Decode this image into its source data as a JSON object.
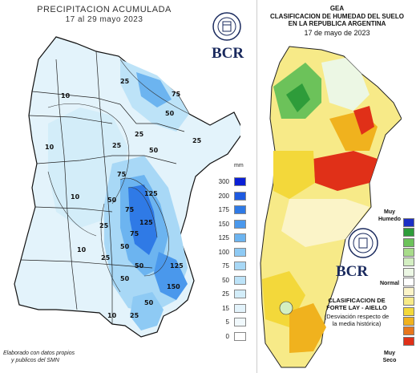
{
  "left": {
    "title_line1": "PRECIPITACION ACUMULADA",
    "title_line2": "17 al 29 mayo 2023",
    "bcr": "BCR",
    "legend_unit": "mm",
    "legend": [
      {
        "label": "300",
        "color": "#0a1fd6"
      },
      {
        "label": "200",
        "color": "#1e5ae0"
      },
      {
        "label": "175",
        "color": "#2f7ae6"
      },
      {
        "label": "150",
        "color": "#4a98ec"
      },
      {
        "label": "125",
        "color": "#6cb4f0"
      },
      {
        "label": "100",
        "color": "#8ecaf4"
      },
      {
        "label": "75",
        "color": "#a8d8f6"
      },
      {
        "label": "50",
        "color": "#bde3f8"
      },
      {
        "label": "25",
        "color": "#d3edf9"
      },
      {
        "label": "15",
        "color": "#e3f3fb"
      },
      {
        "label": "5",
        "color": "#f1f9fd"
      },
      {
        "label": "0",
        "color": "#ffffff"
      }
    ],
    "contours": [
      "10",
      "10",
      "25",
      "50",
      "75",
      "50",
      "25",
      "25",
      "25",
      "75",
      "125",
      "75",
      "50",
      "10",
      "25",
      "50",
      "75",
      "50",
      "25",
      "10",
      "125",
      "125",
      "50",
      "150",
      "10",
      "25",
      "50"
    ],
    "credit_line1": "Elaborado con datos propios",
    "credit_line2": "y publicos del SMN"
  },
  "right": {
    "title_gea": "GEA",
    "title_line1": "CLASIFICACION DE HUMEDAD DEL SUELO",
    "title_line2": "EN LA REPUBLICA ARGENTINA",
    "date": "17 de mayo de 2023",
    "bcr": "BCR",
    "label_top": "Muy\nHumedo",
    "label_mid": "Normal",
    "label_bottom": "Muy\nSeco",
    "scale": [
      "#1b2ec4",
      "#2e9c3a",
      "#6cc25a",
      "#a8dc8a",
      "#d4efc2",
      "#ecf7e4",
      "#ffffff",
      "#fbf4c8",
      "#f7ea88",
      "#f3d83a",
      "#f0b21e",
      "#e8761c",
      "#e03018"
    ],
    "note_line1": "CLASIFICACION DE",
    "note_line2": "FORTE LAY - AIELLO",
    "note_line3": "(Desviación respecto de",
    "note_line4": "la media histórica)"
  }
}
